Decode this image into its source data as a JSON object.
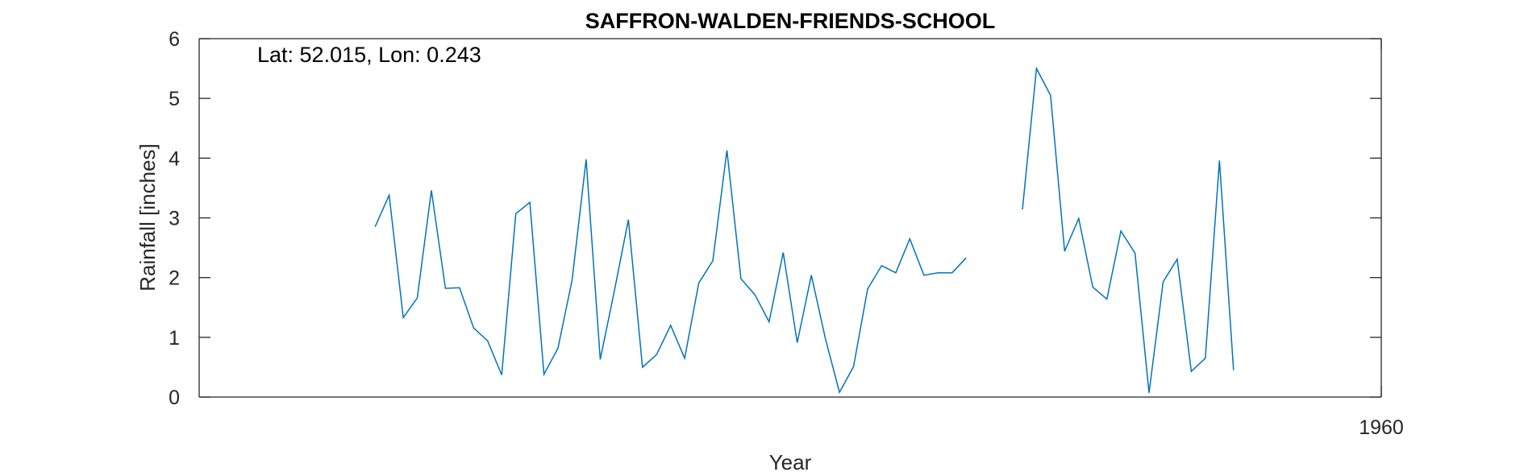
{
  "chart_data": {
    "type": "line",
    "title": "SAFFRON-WALDEN-FRIENDS-SCHOOL",
    "annotation": "Lat: 52.015, Lon: 0.243",
    "xlabel": "Year",
    "ylabel": "Rainfall [inches]",
    "xlim": [
      1876,
      1960
    ],
    "ylim": [
      0,
      6
    ],
    "xticks": [
      1960
    ],
    "yticks": [
      0,
      1,
      2,
      3,
      4,
      5,
      6
    ],
    "grid": false,
    "colors": {
      "line": "#0072BD",
      "axes": "#262626"
    },
    "series": [
      {
        "values": [
          [
            1888.5,
            2.85
          ],
          [
            1889.5,
            3.38
          ],
          [
            1890.5,
            1.33
          ],
          [
            1891.5,
            1.66
          ],
          [
            1892.5,
            3.46
          ],
          [
            1893.5,
            1.82
          ],
          [
            1894.5,
            1.83
          ],
          [
            1895.5,
            1.16
          ],
          [
            1896.5,
            0.94
          ],
          [
            1897.5,
            0.37
          ],
          [
            1898.5,
            3.07
          ],
          [
            1899.5,
            3.26
          ],
          [
            1900.5,
            0.38
          ],
          [
            1901.5,
            0.82
          ],
          [
            1902.5,
            1.96
          ],
          [
            1903.5,
            3.98
          ],
          [
            1904.5,
            0.63
          ],
          [
            1905.5,
            1.77
          ],
          [
            1906.5,
            2.97
          ],
          [
            1907.5,
            0.5
          ],
          [
            1908.5,
            0.71
          ],
          [
            1909.5,
            1.2
          ],
          [
            1910.5,
            0.65
          ],
          [
            1911.5,
            1.91
          ],
          [
            1912.5,
            2.28
          ],
          [
            1913.5,
            4.13
          ],
          [
            1914.5,
            1.98
          ],
          [
            1915.5,
            1.71
          ],
          [
            1916.5,
            1.26
          ],
          [
            1917.5,
            2.42
          ],
          [
            1918.5,
            0.91
          ],
          [
            1919.5,
            2.04
          ],
          [
            1920.5,
            0.98
          ],
          [
            1921.5,
            0.08
          ],
          [
            1922.5,
            0.51
          ],
          [
            1923.5,
            1.81
          ],
          [
            1924.5,
            2.2
          ],
          [
            1925.5,
            2.08
          ],
          [
            1926.5,
            2.65
          ],
          [
            1927.5,
            2.04
          ],
          [
            1928.5,
            2.08
          ],
          [
            1929.5,
            2.08
          ],
          [
            1930.5,
            2.33
          ],
          null,
          [
            1934.5,
            3.14
          ],
          [
            1935.5,
            5.5
          ],
          [
            1936.5,
            5.05
          ],
          [
            1937.5,
            2.44
          ],
          [
            1938.5,
            2.99
          ],
          [
            1939.5,
            1.84
          ],
          [
            1940.5,
            1.64
          ],
          [
            1941.5,
            2.78
          ],
          [
            1942.5,
            2.41
          ],
          [
            1943.5,
            0.07
          ],
          [
            1944.5,
            1.93
          ],
          [
            1945.5,
            2.31
          ],
          [
            1946.5,
            0.43
          ],
          [
            1947.5,
            0.65
          ],
          [
            1948.5,
            3.96
          ],
          [
            1949.5,
            0.45
          ]
        ]
      }
    ]
  }
}
